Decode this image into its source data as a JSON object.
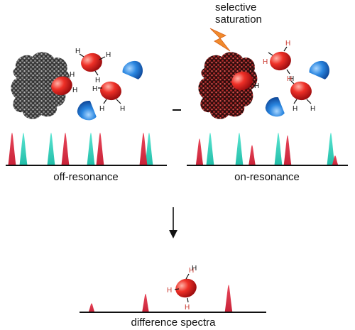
{
  "labels": {
    "saturation_line1": "selective",
    "saturation_line2": "saturation",
    "off_resonance": "off-resonance",
    "on_resonance": "on-resonance",
    "difference": "difference spectra",
    "minus": "–",
    "atom_h": "H"
  },
  "colors": {
    "red_peak": "#dc3145",
    "cyan_peak": "#33d1bd",
    "water_red": "#e8262b",
    "ligand_blue": "#1e7bd6",
    "protein_gray": "#6b6b6b",
    "protein_red": "#7a1b1b",
    "lightning": "#f08a2c",
    "h_red": "#c8342a"
  },
  "spectra": {
    "off": {
      "peaks": [
        {
          "color": "red",
          "height": 1.0
        },
        {
          "color": "cyan",
          "height": 1.0
        },
        {
          "color": "cyan",
          "height": 1.0
        },
        {
          "color": "red",
          "height": 1.0
        },
        {
          "color": "cyan",
          "height": 1.0
        },
        {
          "color": "red",
          "height": 1.0
        },
        {
          "color": "red",
          "height": 1.0
        },
        {
          "color": "cyan",
          "height": 1.0
        }
      ]
    },
    "on": {
      "peaks": [
        {
          "color": "red",
          "height": 0.82
        },
        {
          "color": "cyan",
          "height": 1.0
        },
        {
          "color": "cyan",
          "height": 1.0
        },
        {
          "color": "red",
          "height": 0.62
        },
        {
          "color": "cyan",
          "height": 1.0
        },
        {
          "color": "red",
          "height": 0.92
        },
        {
          "color": "cyan",
          "height": 1.0
        },
        {
          "color": "red",
          "height": 0.3
        }
      ]
    },
    "difference": {
      "peaks": [
        {
          "color": "red",
          "height": 0.3
        },
        {
          "color": "red",
          "height": 0.62
        },
        {
          "color": "red",
          "height": 0.92
        }
      ]
    }
  }
}
